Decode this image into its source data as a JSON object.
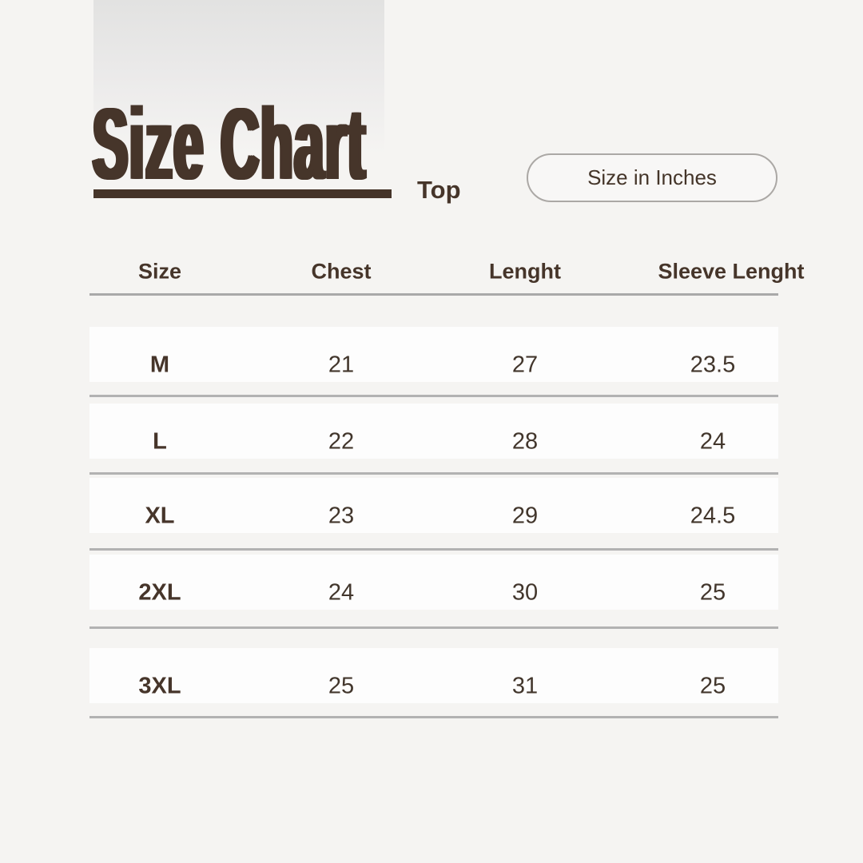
{
  "colors": {
    "background": "#f5f4f2",
    "accent_brown": "#46352a",
    "row_band": "#fdfdfd",
    "separator_gray": "#b2b2b2",
    "badge_border": "#aba8a5"
  },
  "header": {
    "title": "Size Chart",
    "category": "Top",
    "badge": "Size in Inches"
  },
  "chart_data": {
    "type": "table",
    "title": "Size Chart",
    "subtitle": "Top",
    "unit_label": "Size in Inches",
    "columns": [
      "Size",
      "Chest",
      "Lenght",
      "Sleeve Lenght"
    ],
    "rows": [
      [
        "M",
        "21",
        "27",
        "23.5"
      ],
      [
        "L",
        "22",
        "28",
        "24"
      ],
      [
        "XL",
        "23",
        "29",
        "24.5"
      ],
      [
        "2XL",
        "24",
        "30",
        "25"
      ],
      [
        "3XL",
        "25",
        "31",
        "25"
      ]
    ]
  }
}
